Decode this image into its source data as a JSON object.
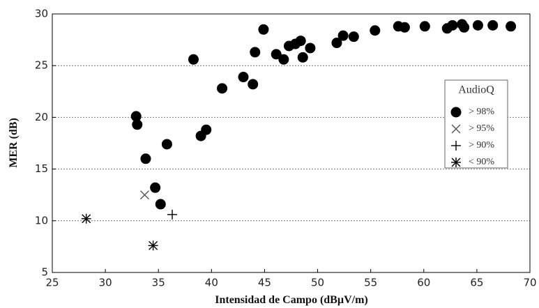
{
  "chart_data": {
    "type": "scatter",
    "x_label": "Intensidad de Campo (dBµV/m)",
    "y_label": "MER (dB)",
    "xlim": [
      25,
      70
    ],
    "ylim": [
      5,
      30
    ],
    "xticks": [
      25,
      30,
      35,
      40,
      45,
      50,
      55,
      60,
      65,
      70
    ],
    "yticks": [
      5,
      10,
      15,
      20,
      25,
      30
    ],
    "grid": true,
    "legend": "right",
    "legend_title": "AudioQ",
    "series": [
      {
        "name": "> 98%",
        "color": "#000000",
        "marker": "circle",
        "x": [
          32.9,
          33.0,
          33.8,
          34.7,
          35.2,
          35.8,
          38.3,
          39.0,
          39.5,
          41.0,
          43.0,
          43.9,
          44.1,
          44.9,
          46.1,
          46.8,
          47.3,
          47.9,
          48.4,
          48.6,
          49.3,
          51.8,
          52.4,
          53.4,
          55.4,
          57.6,
          58.2,
          60.1,
          62.2,
          62.7,
          63.6,
          63.8,
          65.1,
          66.5,
          68.2
        ],
        "values": [
          20.1,
          19.3,
          16.0,
          13.2,
          11.6,
          17.4,
          25.6,
          18.2,
          18.8,
          22.8,
          23.9,
          23.2,
          26.3,
          28.5,
          26.1,
          25.6,
          26.9,
          27.1,
          27.4,
          25.8,
          26.7,
          27.2,
          27.9,
          27.8,
          28.4,
          28.8,
          28.7,
          28.8,
          28.6,
          28.9,
          29.0,
          28.7,
          28.9,
          28.9,
          28.8
        ]
      },
      {
        "name": "> 95%",
        "color": "#555555",
        "marker": "x",
        "x": [
          33.7
        ],
        "values": [
          12.5
        ]
      },
      {
        "name": "> 90%",
        "color": "#000000",
        "marker": "plus",
        "x": [
          36.3
        ],
        "values": [
          10.6
        ]
      },
      {
        "name": "< 90%",
        "color": "#000000",
        "marker": "star",
        "x": [
          28.2,
          34.5
        ],
        "values": [
          10.2,
          7.6
        ]
      }
    ]
  }
}
